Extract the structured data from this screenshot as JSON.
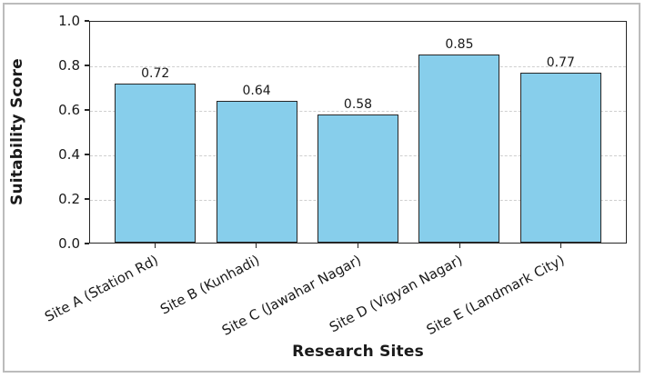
{
  "chart_data": {
    "type": "bar",
    "title": "",
    "categories": [
      "Site A (Station Rd)",
      "Site B (Kunhadi)",
      "Site C (Jawahar Nagar)",
      "Site D (Vigyan Nagar)",
      "Site E (Landmark City)"
    ],
    "values": [
      0.72,
      0.64,
      0.58,
      0.85,
      0.77
    ],
    "bar_value_labels": [
      "0.72",
      "0.64",
      "0.58",
      "0.85",
      "0.77"
    ],
    "xlabel": "Research Sites",
    "ylabel": "Suitability Score",
    "ylim": [
      0.0,
      1.0
    ],
    "yticks": [
      0.0,
      0.2,
      0.4,
      0.6,
      0.8,
      1.0
    ],
    "ytick_labels": [
      "0.0",
      "0.2",
      "0.4",
      "0.6",
      "0.8",
      "1.0"
    ],
    "xtick_rotation_deg": 28,
    "grid": "horizontal-dashed",
    "legend": "none",
    "bar_color": "#87CEEB",
    "bar_edge_color": "#262626",
    "grid_color": "#cfcfcf",
    "text_color": "#1a1a1a",
    "figure_border_color": "#bcbcbc"
  }
}
